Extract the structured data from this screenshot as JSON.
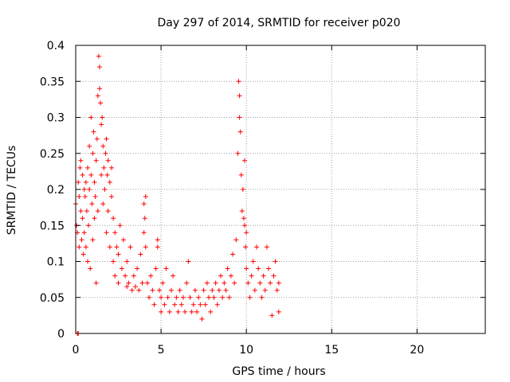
{
  "chart_data": {
    "type": "scatter",
    "title": "Day 297 of 2014, SRMTID for receiver p020",
    "xlabel": "GPS time / hours",
    "ylabel": "SRMTID / TECUs",
    "xlim": [
      0,
      24
    ],
    "ylim": [
      0,
      0.4
    ],
    "xticks": [
      0,
      5,
      10,
      15,
      20
    ],
    "xtick_labels": [
      "0",
      "5",
      "10",
      "15",
      "20"
    ],
    "yticks": [
      0,
      0.05,
      0.1,
      0.15,
      0.2,
      0.25,
      0.3,
      0.35,
      0.4
    ],
    "ytick_labels": [
      "0",
      "0.05",
      "0.1",
      "0.15",
      "0.2",
      "0.25",
      "0.3",
      "0.35",
      "0.4"
    ],
    "grid": true,
    "marker": "+",
    "color": "#ff0000",
    "series": [
      {
        "name": "SRMTID",
        "points": [
          [
            0.0,
            0.18
          ],
          [
            0.05,
            0.15
          ],
          [
            0.1,
            0.14
          ],
          [
            0.1,
            0.0
          ],
          [
            0.15,
            0.0
          ],
          [
            0.15,
            0.21
          ],
          [
            0.2,
            0.19
          ],
          [
            0.2,
            0.12
          ],
          [
            0.25,
            0.23
          ],
          [
            0.3,
            0.17
          ],
          [
            0.3,
            0.24
          ],
          [
            0.35,
            0.13
          ],
          [
            0.4,
            0.22
          ],
          [
            0.4,
            0.16
          ],
          [
            0.45,
            0.11
          ],
          [
            0.5,
            0.2
          ],
          [
            0.5,
            0.14
          ],
          [
            0.55,
            0.19
          ],
          [
            0.6,
            0.21
          ],
          [
            0.6,
            0.12
          ],
          [
            0.65,
            0.17
          ],
          [
            0.7,
            0.23
          ],
          [
            0.7,
            0.1
          ],
          [
            0.75,
            0.15
          ],
          [
            0.8,
            0.26
          ],
          [
            0.8,
            0.2
          ],
          [
            0.85,
            0.09
          ],
          [
            0.9,
            0.22
          ],
          [
            0.9,
            0.3
          ],
          [
            0.95,
            0.18
          ],
          [
            1.0,
            0.25
          ],
          [
            1.0,
            0.13
          ],
          [
            1.05,
            0.28
          ],
          [
            1.1,
            0.21
          ],
          [
            1.1,
            0.16
          ],
          [
            1.15,
            0.19
          ],
          [
            1.2,
            0.24
          ],
          [
            1.2,
            0.07
          ],
          [
            1.25,
            0.27
          ],
          [
            1.3,
            0.17
          ],
          [
            1.3,
            0.33
          ],
          [
            1.35,
            0.385
          ],
          [
            1.4,
            0.37
          ],
          [
            1.4,
            0.34
          ],
          [
            1.45,
            0.32
          ],
          [
            1.5,
            0.29
          ],
          [
            1.5,
            0.22
          ],
          [
            1.55,
            0.3
          ],
          [
            1.6,
            0.26
          ],
          [
            1.6,
            0.18
          ],
          [
            1.65,
            0.23
          ],
          [
            1.7,
            0.2
          ],
          [
            1.75,
            0.25
          ],
          [
            1.8,
            0.27
          ],
          [
            1.8,
            0.14
          ],
          [
            1.85,
            0.22
          ],
          [
            1.9,
            0.24
          ],
          [
            1.9,
            0.17
          ],
          [
            2.0,
            0.21
          ],
          [
            2.0,
            0.12
          ],
          [
            2.1,
            0.19
          ],
          [
            2.1,
            0.23
          ],
          [
            2.2,
            0.16
          ],
          [
            2.2,
            0.1
          ],
          [
            2.3,
            0.14
          ],
          [
            2.3,
            0.08
          ],
          [
            2.4,
            0.12
          ],
          [
            2.5,
            0.11
          ],
          [
            2.5,
            0.07
          ],
          [
            2.6,
            0.15
          ],
          [
            2.7,
            0.09
          ],
          [
            2.8,
            0.13
          ],
          [
            2.9,
            0.08
          ],
          [
            3.0,
            0.1
          ],
          [
            3.0,
            0.065
          ],
          [
            3.1,
            0.07
          ],
          [
            3.2,
            0.12
          ],
          [
            3.3,
            0.06
          ],
          [
            3.4,
            0.08
          ],
          [
            3.5,
            0.065
          ],
          [
            3.6,
            0.09
          ],
          [
            3.7,
            0.06
          ],
          [
            3.8,
            0.11
          ],
          [
            3.9,
            0.07
          ],
          [
            4.0,
            0.18
          ],
          [
            4.0,
            0.14
          ],
          [
            4.05,
            0.16
          ],
          [
            4.1,
            0.19
          ],
          [
            4.1,
            0.12
          ],
          [
            4.2,
            0.07
          ],
          [
            4.3,
            0.05
          ],
          [
            4.4,
            0.08
          ],
          [
            4.5,
            0.06
          ],
          [
            4.6,
            0.04
          ],
          [
            4.7,
            0.09
          ],
          [
            4.8,
            0.12
          ],
          [
            4.8,
            0.13
          ],
          [
            4.9,
            0.06
          ],
          [
            5.0,
            0.05
          ],
          [
            5.0,
            0.03
          ],
          [
            5.1,
            0.07
          ],
          [
            5.2,
            0.04
          ],
          [
            5.3,
            0.09
          ],
          [
            5.4,
            0.05
          ],
          [
            5.5,
            0.03
          ],
          [
            5.6,
            0.06
          ],
          [
            5.7,
            0.08
          ],
          [
            5.8,
            0.04
          ],
          [
            5.9,
            0.05
          ],
          [
            6.0,
            0.03
          ],
          [
            6.1,
            0.06
          ],
          [
            6.2,
            0.04
          ],
          [
            6.3,
            0.05
          ],
          [
            6.4,
            0.03
          ],
          [
            6.5,
            0.07
          ],
          [
            6.6,
            0.1
          ],
          [
            6.7,
            0.05
          ],
          [
            6.8,
            0.03
          ],
          [
            6.9,
            0.04
          ],
          [
            7.0,
            0.06
          ],
          [
            7.1,
            0.03
          ],
          [
            7.2,
            0.05
          ],
          [
            7.3,
            0.04
          ],
          [
            7.4,
            0.02
          ],
          [
            7.5,
            0.06
          ],
          [
            7.6,
            0.04
          ],
          [
            7.7,
            0.07
          ],
          [
            7.8,
            0.05
          ],
          [
            7.9,
            0.03
          ],
          [
            8.0,
            0.06
          ],
          [
            8.1,
            0.05
          ],
          [
            8.2,
            0.07
          ],
          [
            8.3,
            0.04
          ],
          [
            8.4,
            0.06
          ],
          [
            8.5,
            0.08
          ],
          [
            8.6,
            0.05
          ],
          [
            8.7,
            0.07
          ],
          [
            8.8,
            0.06
          ],
          [
            8.9,
            0.09
          ],
          [
            9.0,
            0.05
          ],
          [
            9.1,
            0.08
          ],
          [
            9.2,
            0.11
          ],
          [
            9.3,
            0.07
          ],
          [
            9.4,
            0.13
          ],
          [
            9.5,
            0.25
          ],
          [
            9.55,
            0.35
          ],
          [
            9.6,
            0.33
          ],
          [
            9.6,
            0.3
          ],
          [
            9.65,
            0.28
          ],
          [
            9.7,
            0.22
          ],
          [
            9.75,
            0.17
          ],
          [
            9.8,
            0.2
          ],
          [
            9.85,
            0.16
          ],
          [
            9.9,
            0.24
          ],
          [
            9.9,
            0.15
          ],
          [
            9.95,
            0.12
          ],
          [
            10.0,
            0.14
          ],
          [
            10.0,
            0.09
          ],
          [
            10.1,
            0.07
          ],
          [
            10.2,
            0.05
          ],
          [
            10.3,
            0.08
          ],
          [
            10.4,
            0.1
          ],
          [
            10.5,
            0.06
          ],
          [
            10.6,
            0.12
          ],
          [
            10.7,
            0.09
          ],
          [
            10.8,
            0.07
          ],
          [
            10.9,
            0.05
          ],
          [
            11.0,
            0.08
          ],
          [
            11.1,
            0.06
          ],
          [
            11.2,
            0.12
          ],
          [
            11.3,
            0.09
          ],
          [
            11.4,
            0.07
          ],
          [
            11.5,
            0.025
          ],
          [
            11.6,
            0.08
          ],
          [
            11.7,
            0.1
          ],
          [
            11.8,
            0.06
          ],
          [
            11.9,
            0.03
          ],
          [
            11.9,
            0.07
          ]
        ]
      }
    ]
  }
}
